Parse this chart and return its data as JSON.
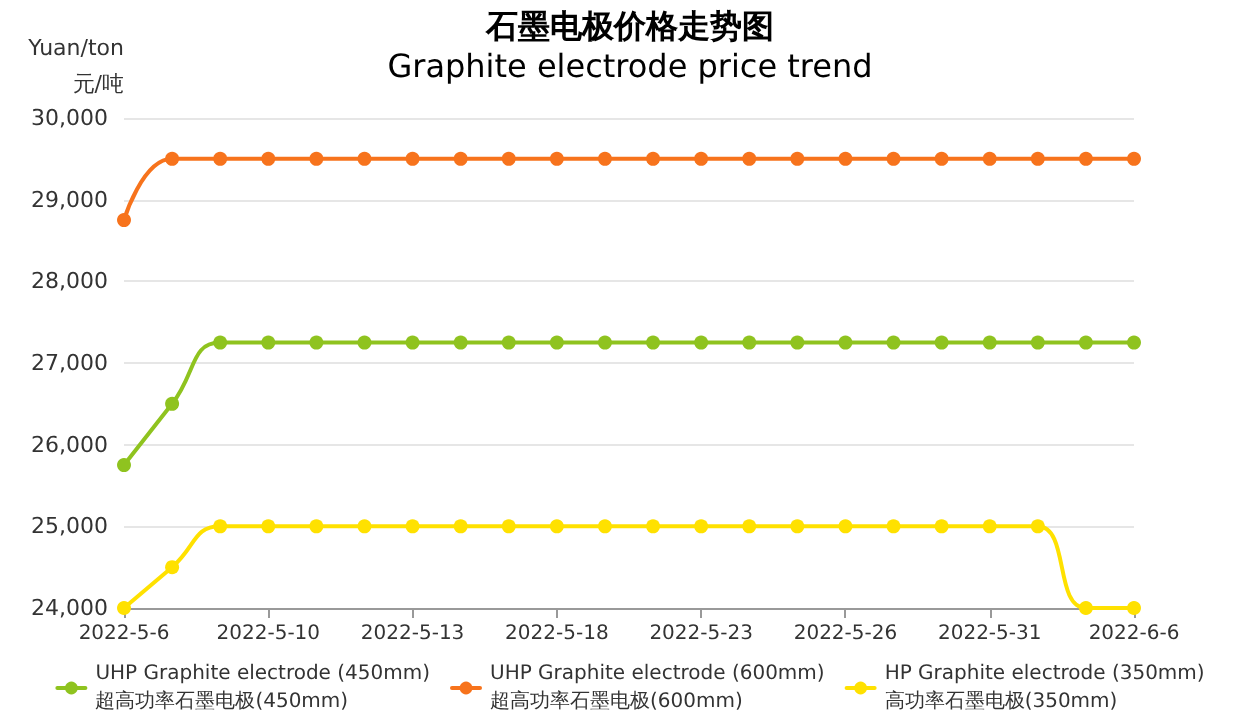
{
  "chart_data": {
    "type": "line",
    "title": "石墨电极价格走势图",
    "subtitle": "Graphite electrode price trend",
    "ylabel": "Yuan/ton\n元/吨",
    "categories": [
      "2022-5-6",
      null,
      null,
      "2022-5-10",
      null,
      null,
      "2022-5-13",
      null,
      null,
      "2022-5-18",
      null,
      null,
      "2022-5-23",
      null,
      null,
      "2022-5-26",
      null,
      null,
      "2022-5-31",
      null,
      null,
      "2022-6-6"
    ],
    "series": [
      {
        "name": "UHP Graphite electrode (450mm)\n超高功率石墨电极(450mm)",
        "color": "#8fc31f",
        "values": [
          25750,
          26500,
          27250,
          27250,
          27250,
          27250,
          27250,
          27250,
          27250,
          27250,
          27250,
          27250,
          27250,
          27250,
          27250,
          27250,
          27250,
          27250,
          27250,
          27250,
          27250,
          27250
        ]
      },
      {
        "name": "UHP Graphite electrode (600mm)\n超高功率石墨电极(600mm)",
        "color": "#f7731c",
        "values": [
          28750,
          29500,
          29500,
          29500,
          29500,
          29500,
          29500,
          29500,
          29500,
          29500,
          29500,
          29500,
          29500,
          29500,
          29500,
          29500,
          29500,
          29500,
          29500,
          29500,
          29500,
          29500
        ]
      },
      {
        "name": "HP Graphite electrode (350mm)\n高功率石墨电极(350mm)",
        "color": "#ffe100",
        "values": [
          24000,
          24500,
          25000,
          25000,
          25000,
          25000,
          25000,
          25000,
          25000,
          25000,
          25000,
          25000,
          25000,
          25000,
          25000,
          25000,
          25000,
          25000,
          25000,
          25000,
          24000,
          24000
        ]
      }
    ],
    "ylim": [
      24000,
      30000
    ],
    "yticks": [
      {
        "value": 24000,
        "label": "24,000"
      },
      {
        "value": 25000,
        "label": "25,000"
      },
      {
        "value": 26000,
        "label": "26,000"
      },
      {
        "value": 27000,
        "label": "27,000"
      },
      {
        "value": 28000,
        "label": "28,000"
      },
      {
        "value": 29000,
        "label": "29,000"
      },
      {
        "value": 30000,
        "label": "30,000"
      }
    ],
    "grid": "y",
    "legend": "bottom",
    "marker": "circle",
    "line_style": "solid"
  }
}
